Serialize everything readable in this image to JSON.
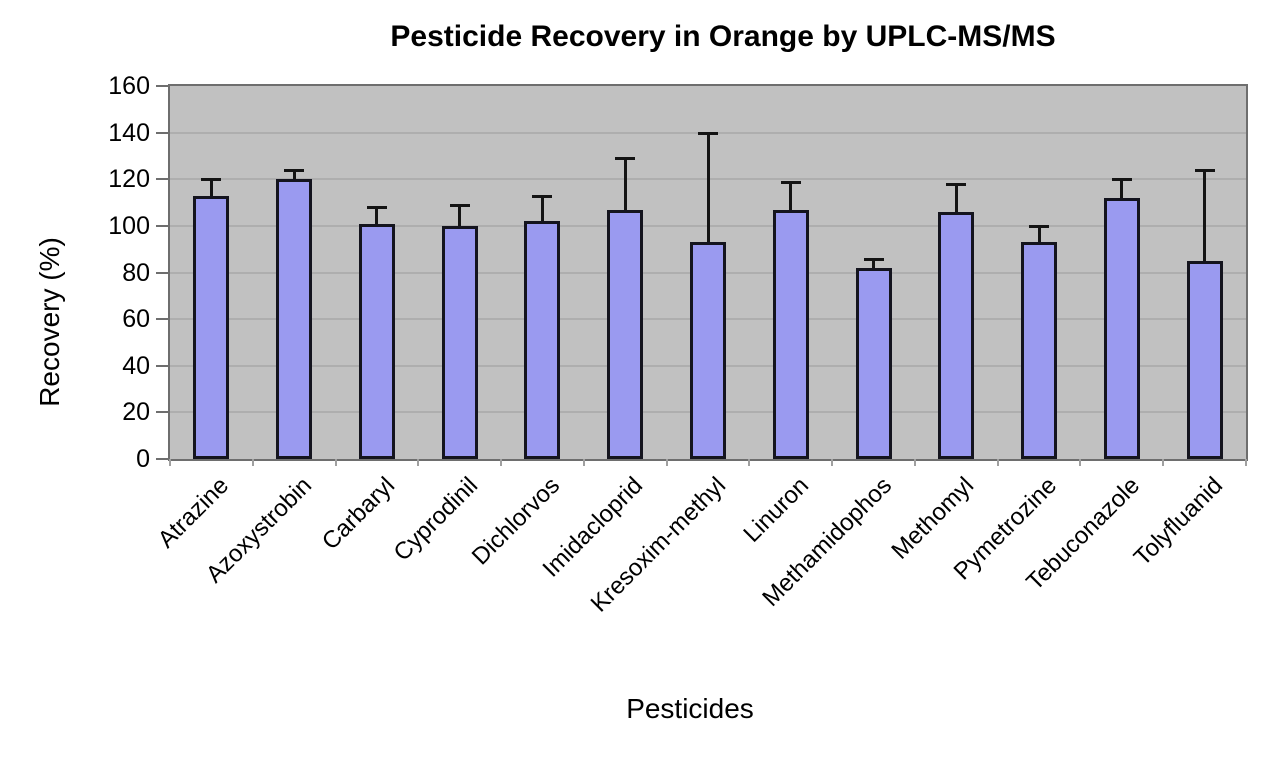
{
  "chart_data": {
    "type": "bar",
    "title": "Pesticide Recovery in Orange by UPLC-MS/MS",
    "xlabel": "Pesticides",
    "ylabel": "Recovery (%)",
    "ylim": [
      0,
      160
    ],
    "yticks": [
      0,
      20,
      40,
      60,
      80,
      100,
      120,
      140,
      160
    ],
    "grid": true,
    "legend": "none",
    "categories": [
      "Atrazine",
      "Azoxystrobin",
      "Carbaryl",
      "Cyprodinil",
      "Dichlorvos",
      "Imidacloprid",
      "Kresoxim-methyl",
      "Linuron",
      "Methamidophos",
      "Methomyl",
      "Pymetrozine",
      "Tebuconazole",
      "Tolyfluanid"
    ],
    "values": [
      113,
      120,
      101,
      100,
      102,
      107,
      93,
      107,
      82,
      106,
      93,
      112,
      85
    ],
    "error_up": [
      7,
      4,
      7,
      9,
      11,
      22,
      47,
      12,
      4,
      12,
      7,
      8,
      39
    ]
  },
  "style": {
    "bar_fill": "#9a9af0",
    "bar_border": "#14141e",
    "error_color": "#141414",
    "plot_bg": "#c1c1c1",
    "gridline_color": "#aeaeae",
    "plot_border": "#6e6e6e",
    "axis_tick_color": "#6e6e6e",
    "x_tick_color": "#a0a0a0",
    "text_color": "#000000"
  }
}
